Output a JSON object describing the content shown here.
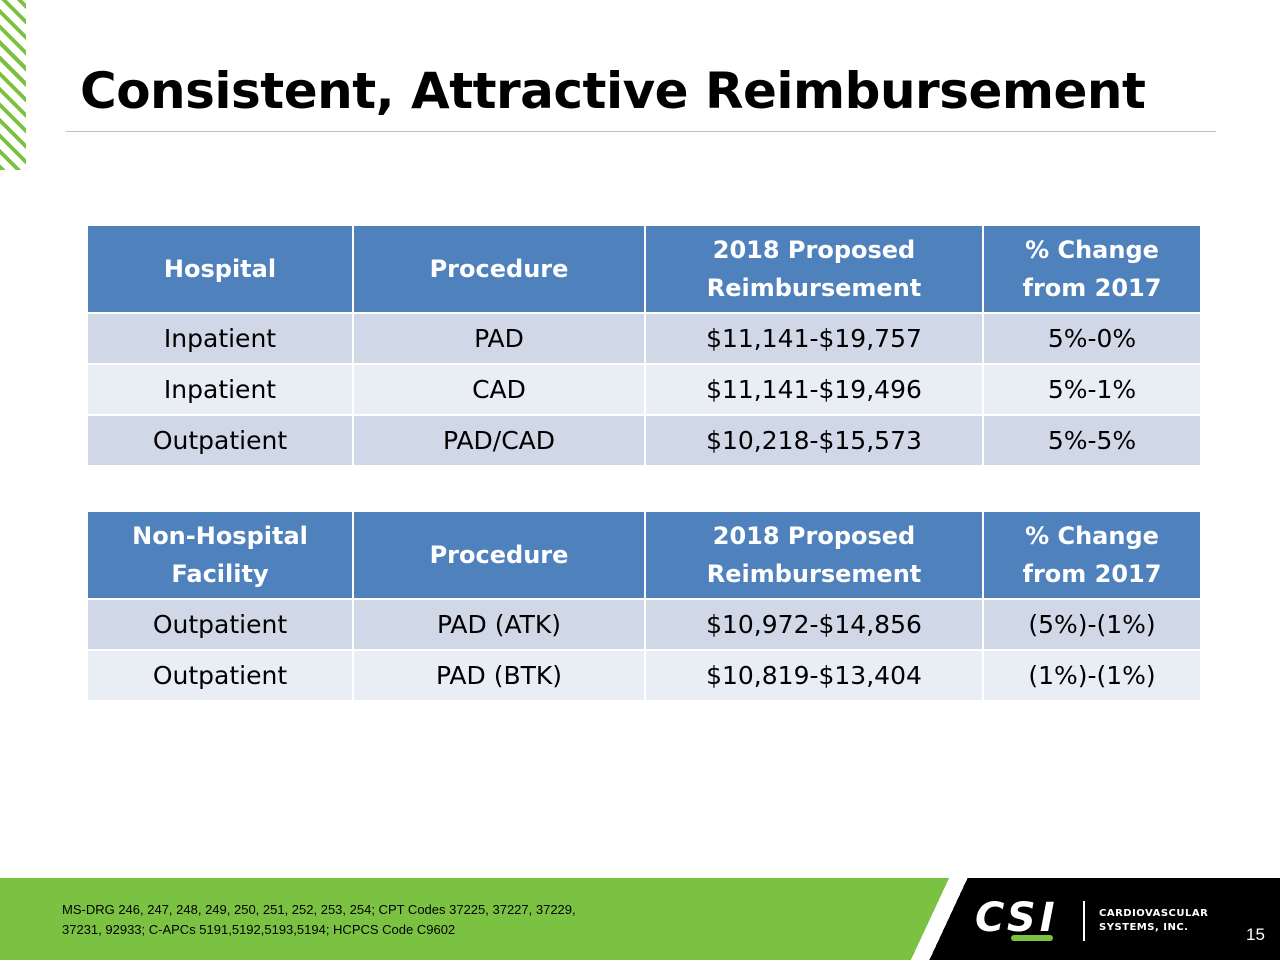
{
  "slide": {
    "title": "Consistent, Attractive Reimbursement",
    "page_number": "15"
  },
  "table_hospital": {
    "headers": [
      "Hospital",
      "Procedure",
      "2018 Proposed\nReimbursement",
      "% Change\nfrom 2017"
    ],
    "rows": [
      [
        "Inpatient",
        "PAD",
        "$11,141-$19,757",
        "5%-0%"
      ],
      [
        "Inpatient",
        "CAD",
        "$11,141-$19,496",
        "5%-1%"
      ],
      [
        "Outpatient",
        "PAD/CAD",
        "$10,218-$15,573",
        "5%-5%"
      ]
    ]
  },
  "table_non_hospital": {
    "headers": [
      "Non-Hospital\nFacility",
      "Procedure",
      "2018 Proposed\nReimbursement",
      "% Change\nfrom 2017"
    ],
    "rows": [
      [
        "Outpatient",
        "PAD (ATK)",
        "$10,972-$14,856",
        "(5%)-(1%)"
      ],
      [
        "Outpatient",
        "PAD (BTK)",
        "$10,819-$13,404",
        "(1%)-(1%)"
      ]
    ]
  },
  "footer": {
    "footnote_line1": "MS-DRG 246, 247, 248, 249, 250, 251, 252, 253, 254; CPT Codes 37225, 37227, 37229,",
    "footnote_line2": "37231, 92933;  C-APCs 5191,5192,5193,5194; HCPCS Code C9602",
    "logo_letters": "CSI",
    "logo_company": "CARDIOVASCULAR\nSYSTEMS, INC."
  },
  "colors": {
    "header_blue": "#4f81bd",
    "row_dark": "#d0d8e8",
    "row_light": "#e9edf4",
    "brand_green": "#7cc242"
  }
}
